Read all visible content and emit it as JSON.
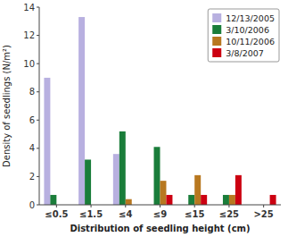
{
  "chart_data": {
    "type": "bar",
    "categories": [
      "≤0.5",
      "≤1.5",
      "≤4",
      "≤9",
      "≤15",
      "≤25",
      ">25"
    ],
    "series": [
      {
        "name": "12/13/2005",
        "color": "#b8b0e0",
        "values": [
          9.0,
          13.3,
          3.6,
          0,
          0,
          0,
          0
        ]
      },
      {
        "name": "3/10/2006",
        "color": "#1a7d3a",
        "values": [
          0.7,
          3.2,
          5.2,
          4.1,
          0.7,
          0.7,
          0
        ]
      },
      {
        "name": "10/11/2006",
        "color": "#b87820",
        "values": [
          0,
          0,
          0.4,
          1.7,
          2.1,
          0.7,
          0
        ]
      },
      {
        "name": "3/8/2007",
        "color": "#cc0011",
        "values": [
          0,
          0,
          0,
          0.7,
          0.7,
          2.1,
          0.7
        ]
      }
    ],
    "xlabel": "Distribution of seedling height (cm)",
    "ylabel": "Density of seedlings (N/m²)",
    "ylim": [
      0,
      14
    ],
    "yticks": [
      0,
      2,
      4,
      6,
      8,
      10,
      12,
      14
    ],
    "grid": false,
    "legend": "upper right"
  }
}
